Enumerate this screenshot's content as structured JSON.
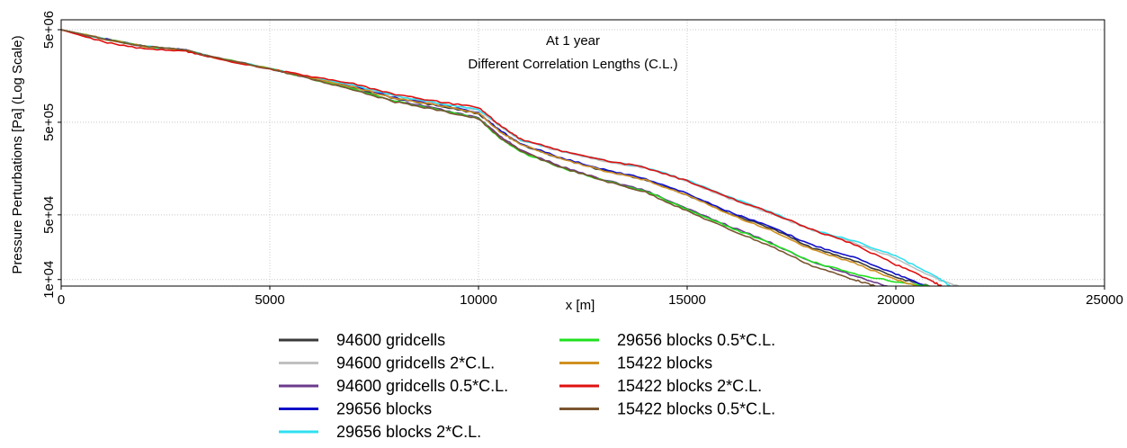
{
  "chart_data": {
    "type": "line",
    "title": "At 1 year",
    "subtitle": "Different Correlation Lengths (C.L.)",
    "xlabel": "x [m]",
    "ylabel": "Pressure Perturbations [Pa] (Log Scale)",
    "xlim": [
      0,
      25000
    ],
    "ylim": [
      8500,
      6400000
    ],
    "yscale": "log",
    "grid": true,
    "legend_position": "bottom-center",
    "x_ticks": [
      "0",
      "5000",
      "10000",
      "15000",
      "20000",
      "25000"
    ],
    "x_tick_values": [
      0,
      5000,
      10000,
      15000,
      20000,
      25000
    ],
    "y_ticks": [
      "1e+04",
      "5e+04",
      "5e+05",
      "5e+06"
    ],
    "y_tick_values": [
      10000,
      50000,
      500000,
      5000000
    ],
    "series": [
      {
        "name": "94600 gridcells",
        "color": "#3a3a3a",
        "x": [
          0,
          1000,
          2000,
          3000,
          3500,
          5000,
          6000,
          7000,
          8000,
          9000,
          10000,
          10500,
          11000,
          12000,
          13000,
          14000,
          15000,
          16000,
          17000,
          18000,
          19000,
          20000,
          20800
        ],
        "y": [
          5000000,
          4000000,
          3300000,
          3000000,
          2600000,
          1900000,
          1500000,
          1200000,
          900000,
          760000,
          620000,
          400000,
          290000,
          200000,
          150000,
          120000,
          82000,
          52000,
          36000,
          22000,
          16000,
          10500,
          8500
        ]
      },
      {
        "name": "94600 gridcells 2*C.L.",
        "color": "#c0c0c0",
        "x": [
          0,
          1000,
          2000,
          3000,
          3500,
          5000,
          6000,
          7000,
          8000,
          9000,
          10000,
          10500,
          11000,
          12000,
          13000,
          14000,
          15000,
          16000,
          17000,
          18000,
          19000,
          20000,
          21000,
          21500
        ],
        "y": [
          5000000,
          4000000,
          3300000,
          3000000,
          2600000,
          1900000,
          1520000,
          1250000,
          960000,
          800000,
          680000,
          460000,
          320000,
          240000,
          190000,
          160000,
          115000,
          75000,
          52000,
          34000,
          25000,
          17000,
          10000,
          8500
        ]
      },
      {
        "name": "94600 gridcells 0.5*C.L.",
        "color": "#6b3a8c",
        "x": [
          0,
          1000,
          2000,
          3000,
          3500,
          5000,
          6000,
          7000,
          8000,
          9000,
          10000,
          10500,
          11000,
          12000,
          13000,
          14000,
          15000,
          16000,
          17000,
          18000,
          19000,
          19800
        ],
        "y": [
          5000000,
          4000000,
          3300000,
          3000000,
          2600000,
          1900000,
          1480000,
          1150000,
          850000,
          700000,
          560000,
          360000,
          250000,
          165000,
          120000,
          92000,
          58000,
          38000,
          25000,
          15500,
          11000,
          8500
        ]
      },
      {
        "name": "29656 blocks",
        "color": "#1010c8",
        "x": [
          0,
          1000,
          2000,
          3000,
          3500,
          5000,
          6000,
          7000,
          8000,
          9000,
          10000,
          10500,
          11000,
          12000,
          13000,
          14000,
          15000,
          16000,
          17000,
          18000,
          19000,
          20000,
          20700
        ],
        "y": [
          5000000,
          4000000,
          3300000,
          3000000,
          2600000,
          1900000,
          1500000,
          1200000,
          920000,
          770000,
          640000,
          410000,
          295000,
          205000,
          155000,
          123000,
          85000,
          54000,
          37000,
          23500,
          17500,
          11500,
          8500
        ]
      },
      {
        "name": "29656 blocks 2*C.L.",
        "color": "#30e0f0",
        "x": [
          0,
          1000,
          2000,
          3000,
          3500,
          5000,
          6000,
          7000,
          8000,
          9000,
          10000,
          10500,
          11000,
          12000,
          13000,
          14000,
          15000,
          16000,
          17000,
          18000,
          19000,
          20000,
          21000,
          21300
        ],
        "y": [
          5000000,
          4000000,
          3300000,
          3000000,
          2600000,
          1900000,
          1530000,
          1260000,
          970000,
          810000,
          690000,
          465000,
          325000,
          245000,
          195000,
          163000,
          118000,
          78000,
          54000,
          35000,
          26000,
          18000,
          10500,
          8500
        ]
      },
      {
        "name": "29656 blocks 0.5*C.L.",
        "color": "#20e020",
        "x": [
          0,
          1000,
          2000,
          3000,
          3500,
          5000,
          6000,
          7000,
          8000,
          9000,
          10000,
          10500,
          11000,
          12000,
          13000,
          14000,
          15000,
          16000,
          17000,
          18000,
          19000,
          20000,
          20800
        ],
        "y": [
          5000000,
          4000000,
          3300000,
          3000000,
          2600000,
          1900000,
          1470000,
          1140000,
          840000,
          690000,
          550000,
          340000,
          240000,
          160000,
          118000,
          90000,
          57000,
          37000,
          24500,
          15500,
          11500,
          9500,
          8500
        ]
      },
      {
        "name": "15422 blocks",
        "color": "#d09020",
        "x": [
          0,
          1000,
          2000,
          3000,
          3500,
          5000,
          6000,
          7000,
          8000,
          9000,
          10000,
          10500,
          11000,
          12000,
          13000,
          14000,
          15000,
          16000,
          17000,
          18000,
          19000,
          20000,
          20500
        ],
        "y": [
          5000000,
          4000000,
          3300000,
          3000000,
          2600000,
          1900000,
          1500000,
          1200000,
          910000,
          765000,
          630000,
          400000,
          290000,
          200000,
          150000,
          119000,
          81000,
          51000,
          34000,
          21000,
          15000,
          10000,
          8500
        ]
      },
      {
        "name": "15422 blocks 2*C.L.",
        "color": "#e01010",
        "x": [
          0,
          1000,
          2000,
          3000,
          3500,
          5000,
          6000,
          7000,
          8000,
          9000,
          10000,
          10500,
          11000,
          12000,
          13000,
          14000,
          15000,
          16000,
          17000,
          18000,
          19000,
          20000,
          20800,
          21100
        ],
        "y": [
          5000000,
          3700000,
          3100000,
          2900000,
          2550000,
          1880000,
          1560000,
          1300000,
          1000000,
          840000,
          720000,
          470000,
          330000,
          245000,
          195000,
          162000,
          116000,
          77000,
          53000,
          34500,
          24000,
          14500,
          10000,
          8500
        ]
      },
      {
        "name": "15422 blocks 0.5*C.L.",
        "color": "#7a5530",
        "x": [
          0,
          1000,
          2000,
          3000,
          3500,
          5000,
          6000,
          7000,
          8000,
          9000,
          10000,
          10500,
          11000,
          12000,
          13000,
          14000,
          15000,
          16000,
          17000,
          18000,
          19000,
          19500
        ],
        "y": [
          5000000,
          4000000,
          3300000,
          3000000,
          2600000,
          1900000,
          1460000,
          1130000,
          830000,
          680000,
          545000,
          345000,
          245000,
          162000,
          117000,
          88000,
          55000,
          35000,
          23000,
          14000,
          10000,
          8500
        ]
      }
    ]
  }
}
